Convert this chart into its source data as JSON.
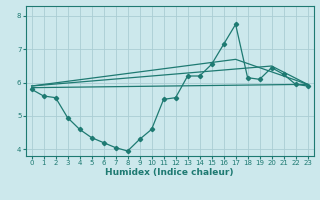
{
  "xlabel": "Humidex (Indice chaleur)",
  "bg_color": "#cce8ec",
  "grid_color": "#aacdd4",
  "line_color": "#1e7a72",
  "xlim": [
    -0.5,
    23.5
  ],
  "ylim": [
    3.8,
    8.3
  ],
  "xticks": [
    0,
    1,
    2,
    3,
    4,
    5,
    6,
    7,
    8,
    9,
    10,
    11,
    12,
    13,
    14,
    15,
    16,
    17,
    18,
    19,
    20,
    21,
    22,
    23
  ],
  "yticks": [
    4,
    5,
    6,
    7,
    8
  ],
  "line1_x": [
    0,
    1,
    2,
    3,
    4,
    5,
    6,
    7,
    8,
    9,
    10,
    11,
    12,
    13,
    14,
    15,
    16,
    17,
    18,
    19,
    20,
    21,
    22,
    23
  ],
  "line1_y": [
    5.8,
    5.6,
    5.55,
    4.95,
    4.6,
    4.35,
    4.2,
    4.05,
    3.95,
    4.3,
    4.6,
    5.5,
    5.55,
    6.2,
    6.2,
    6.55,
    7.15,
    7.75,
    6.15,
    6.1,
    6.45,
    6.25,
    5.95,
    5.9
  ],
  "line2_x": [
    0,
    23
  ],
  "line2_y": [
    5.85,
    5.95
  ],
  "line3_x": [
    0,
    17,
    23
  ],
  "line3_y": [
    5.9,
    6.7,
    5.95
  ],
  "line4_x": [
    0,
    20,
    23
  ],
  "line4_y": [
    5.9,
    6.5,
    5.95
  ]
}
